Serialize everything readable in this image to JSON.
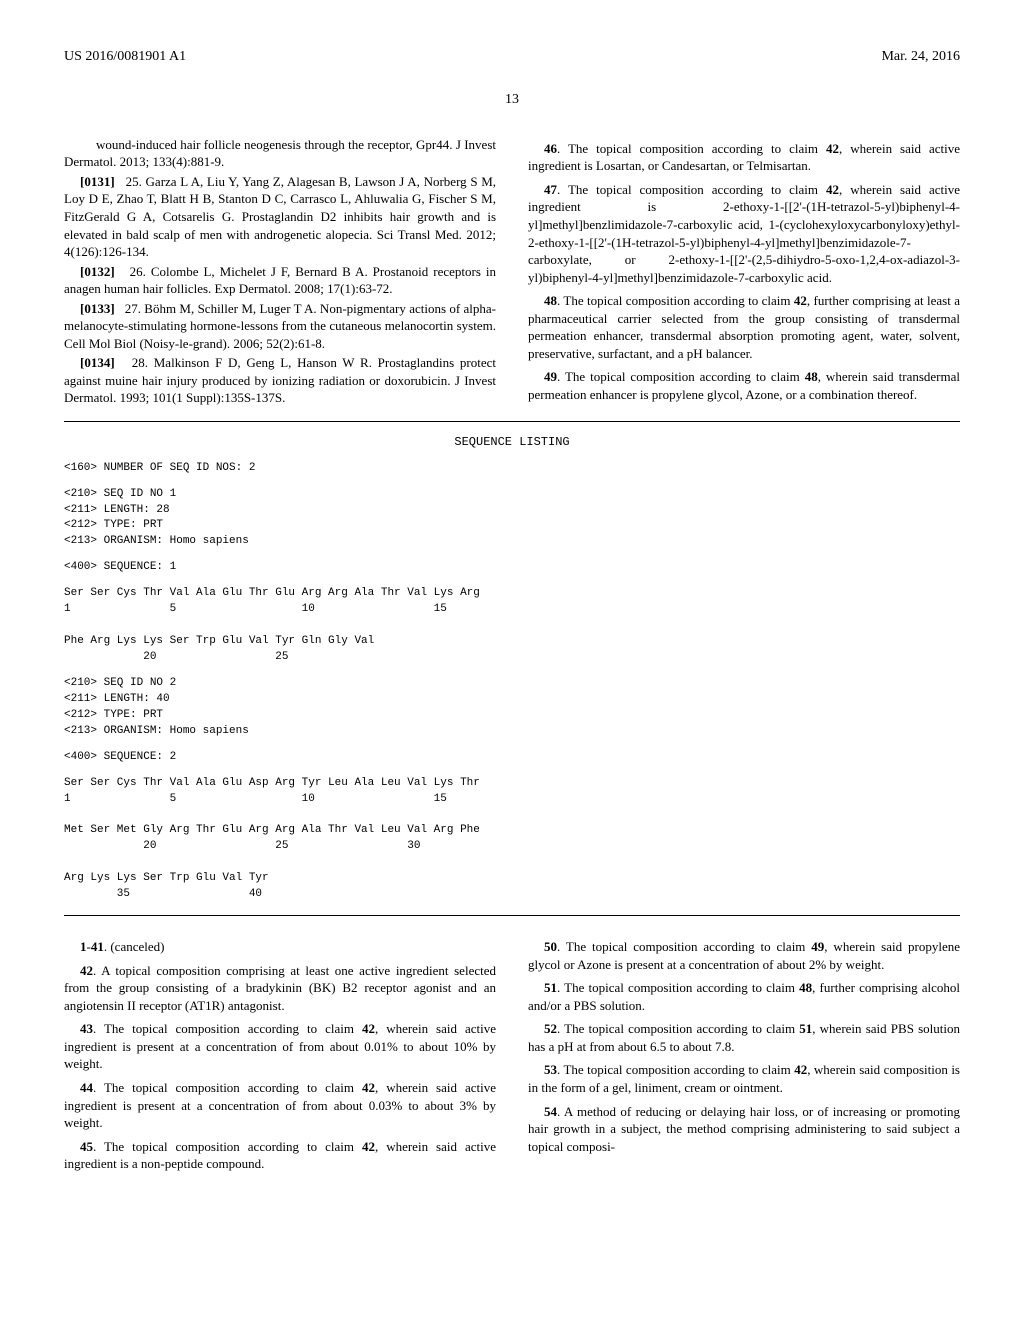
{
  "header": {
    "left": "US 2016/0081901 A1",
    "right": "Mar. 24, 2016"
  },
  "pageNumber": "13",
  "leftColumn": {
    "ref_cont": "wound-induced hair follicle neogenesis through the receptor, Gpr44. J Invest Dermatol. 2013; 133(4):881-9.",
    "refs": [
      {
        "num": "[0131]",
        "text": "25. Garza L A, Liu Y, Yang Z, Alagesan B, Lawson J A, Norberg S M, Loy D E, Zhao T, Blatt H B, Stanton D C, Carrasco L, Ahluwalia G, Fischer S M, FitzGerald G A, Cotsarelis G. Prostaglandin D2 inhibits hair growth and is elevated in bald scalp of men with androgenetic alopecia. Sci Transl Med. 2012; 4(126):126-134."
      },
      {
        "num": "[0132]",
        "text": "26. Colombe L, Michelet J F, Bernard B A. Prostanoid receptors in anagen human hair follicles. Exp Dermatol. 2008; 17(1):63-72."
      },
      {
        "num": "[0133]",
        "text": "27. Böhm M, Schiller M, Luger T A. Non-pigmentary actions of alpha-melanocyte-stimulating hormone-lessons from the cutaneous melanocortin system. Cell Mol Biol (Noisy-le-grand). 2006; 52(2):61-8."
      },
      {
        "num": "[0134]",
        "text": "28. Malkinson F D, Geng L, Hanson W R. Prostaglandins protect against muine hair injury produced by ionizing radiation or doxorubicin. J Invest Dermatol. 1993; 101(1 Suppl):135S-137S."
      }
    ]
  },
  "rightColumn": {
    "claims": [
      {
        "num": "46",
        "text": ". The topical composition according to claim ",
        "refNum": "42",
        "textAfter": ", wherein said active ingredient is Losartan, or Candesartan, or Telmisartan."
      },
      {
        "num": "47",
        "text": ". The topical composition according to claim ",
        "refNum": "42",
        "textAfter": ", wherein said active ingredient is 2-ethoxy-1-[[2'-(1H-tetrazol-5-yl)biphenyl-4-yl]methyl]benzlimidazole-7-carboxylic acid, 1-(cyclohexyloxycarbonyloxy)ethyl-2-ethoxy-1-[[2'-(1H-tetrazol-5-yl)biphenyl-4-yl]methyl]benzimidazole-7-carboxylate, or 2-ethoxy-1-[[2'-(2,5-dihiydro-5-oxo-1,2,4-ox-adiazol-3-yl)biphenyl-4-yl]methyl]benzimidazole-7-carboxylic acid."
      },
      {
        "num": "48",
        "text": ". The topical composition according to claim ",
        "refNum": "42",
        "textAfter": ", further comprising at least a pharmaceutical carrier selected from the group consisting of transdermal permeation enhancer, transdermal absorption promoting agent, water, solvent, preservative, surfactant, and a pH balancer."
      },
      {
        "num": "49",
        "text": ". The topical composition according to claim ",
        "refNum": "48",
        "textAfter": ", wherein said transdermal permeation enhancer is propylene glycol, Azone, or a combination thereof."
      }
    ]
  },
  "sequenceListing": {
    "title": "SEQUENCE LISTING",
    "block160": "<160> NUMBER OF SEQ ID NOS: 2",
    "seq1": {
      "header": "<210> SEQ ID NO 1\n<211> LENGTH: 28\n<212> TYPE: PRT\n<213> ORGANISM: Homo sapiens",
      "seqLine": "<400> SEQUENCE: 1",
      "data": "Ser Ser Cys Thr Val Ala Glu Thr Glu Arg Arg Ala Thr Val Lys Arg\n1               5                   10                  15\n\nPhe Arg Lys Lys Ser Trp Glu Val Tyr Gln Gly Val\n            20                  25"
    },
    "seq2": {
      "header": "<210> SEQ ID NO 2\n<211> LENGTH: 40\n<212> TYPE: PRT\n<213> ORGANISM: Homo sapiens",
      "seqLine": "<400> SEQUENCE: 2",
      "data": "Ser Ser Cys Thr Val Ala Glu Asp Arg Tyr Leu Ala Leu Val Lys Thr\n1               5                   10                  15\n\nMet Ser Met Gly Arg Thr Glu Arg Arg Ala Thr Val Leu Val Arg Phe\n            20                  25                  30\n\nArg Lys Lys Ser Trp Glu Val Tyr\n        35                  40"
    }
  },
  "claimsLeft": [
    {
      "num": "1",
      "suffix": "-",
      "num2": "41",
      "text": ". (canceled)"
    },
    {
      "num": "42",
      "text": ". A topical composition comprising at least one active ingredient selected from the group consisting of a bradykinin (BK) B2 receptor agonist and an angiotensin II receptor (AT1R) antagonist."
    },
    {
      "num": "43",
      "text": ". The topical composition according to claim ",
      "refNum": "42",
      "textAfter": ", wherein said active ingredient is present at a concentration of from about 0.01% to about 10% by weight."
    },
    {
      "num": "44",
      "text": ". The topical composition according to claim ",
      "refNum": "42",
      "textAfter": ", wherein said active ingredient is present at a concentration of from about 0.03% to about 3% by weight."
    },
    {
      "num": "45",
      "text": ". The topical composition according to claim ",
      "refNum": "42",
      "textAfter": ", wherein said active ingredient is a non-peptide compound."
    }
  ],
  "claimsRight": [
    {
      "num": "50",
      "text": ". The topical composition according to claim ",
      "refNum": "49",
      "textAfter": ", wherein said propylene glycol or Azone is present at a concentration of about 2% by weight."
    },
    {
      "num": "51",
      "text": ". The topical composition according to claim ",
      "refNum": "48",
      "textAfter": ", further comprising alcohol and/or a PBS solution."
    },
    {
      "num": "52",
      "text": ". The topical composition according to claim ",
      "refNum": "51",
      "textAfter": ", wherein said PBS solution has a pH at from about 6.5 to about 7.8."
    },
    {
      "num": "53",
      "text": ". The topical composition according to claim ",
      "refNum": "42",
      "textAfter": ", wherein said composition is in the form of a gel, liniment, cream or ointment."
    },
    {
      "num": "54",
      "text": ". A method of reducing or delaying hair loss, or of increasing or promoting hair growth in a subject, the method comprising administering to said subject a topical composi-"
    }
  ]
}
